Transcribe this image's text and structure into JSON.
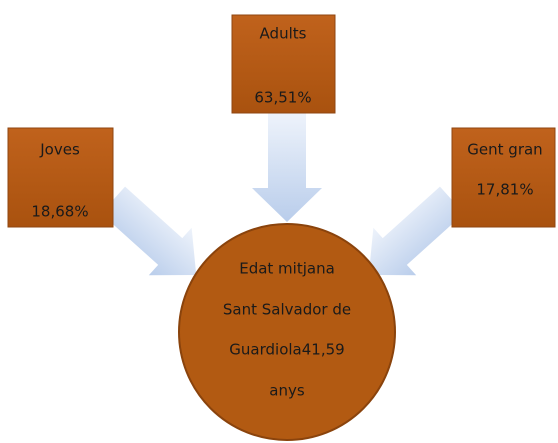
{
  "nodes": [
    {
      "label": "Adults",
      "value": "63,51%"
    },
    {
      "label": "Joves",
      "value": "18,68%"
    },
    {
      "label": "Gent gran",
      "value": "17,81%"
    }
  ],
  "center": {
    "lines": [
      "Edat mitjana",
      "Sant Salvador de",
      "Guardiola41,59",
      "anys"
    ]
  }
}
